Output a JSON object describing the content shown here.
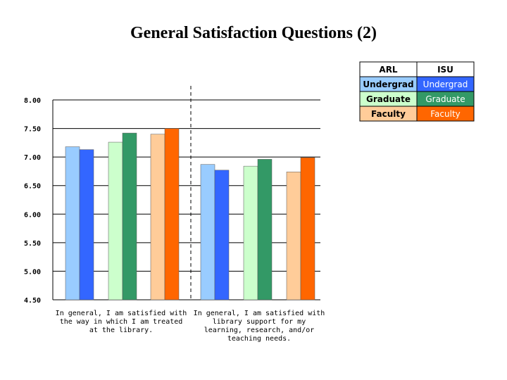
{
  "title": "General Satisfaction Questions (2)",
  "chart_data": {
    "type": "bar",
    "title": "General Satisfaction Questions (2)",
    "ylim": [
      4.5,
      8.0
    ],
    "yticks": [
      "8.00",
      "7.50",
      "7.00",
      "6.50",
      "6.00",
      "5.50",
      "5.00",
      "4.50"
    ],
    "grid": true,
    "legend_position": "top-right",
    "categories": [
      [
        "In general, I am satisfied with",
        "the way in which I am treated",
        "at the library."
      ],
      [
        "In general, I am satisfied with",
        "library support for my",
        "learning, research, and/or",
        "teaching needs."
      ]
    ],
    "series": [
      {
        "group": "Undergrad",
        "source": "ARL",
        "color": "#99ccff",
        "values": [
          7.18,
          6.87
        ]
      },
      {
        "group": "Undergrad",
        "source": "ISU",
        "color": "#3366ff",
        "values": [
          7.13,
          6.77
        ]
      },
      {
        "group": "Graduate",
        "source": "ARL",
        "color": "#ccffcc",
        "values": [
          7.26,
          6.84
        ]
      },
      {
        "group": "Graduate",
        "source": "ISU",
        "color": "#339966",
        "values": [
          7.42,
          6.96
        ]
      },
      {
        "group": "Faculty",
        "source": "ARL",
        "color": "#ffcc99",
        "values": [
          7.4,
          6.74
        ]
      },
      {
        "group": "Faculty",
        "source": "ISU",
        "color": "#ff6600",
        "values": [
          7.5,
          6.99
        ]
      }
    ],
    "legend": {
      "headers": [
        "ARL",
        "ISU"
      ],
      "rows": [
        {
          "arl": "Undergrad",
          "isu": "Undergrad",
          "arl_color": "#99ccff",
          "isu_color": "#3366ff"
        },
        {
          "arl": "Graduate",
          "isu": "Graduate",
          "arl_color": "#ccffcc",
          "isu_color": "#339966"
        },
        {
          "arl": "Faculty",
          "isu": "Faculty",
          "arl_color": "#ffcc99",
          "isu_color": "#ff6600"
        }
      ]
    }
  }
}
